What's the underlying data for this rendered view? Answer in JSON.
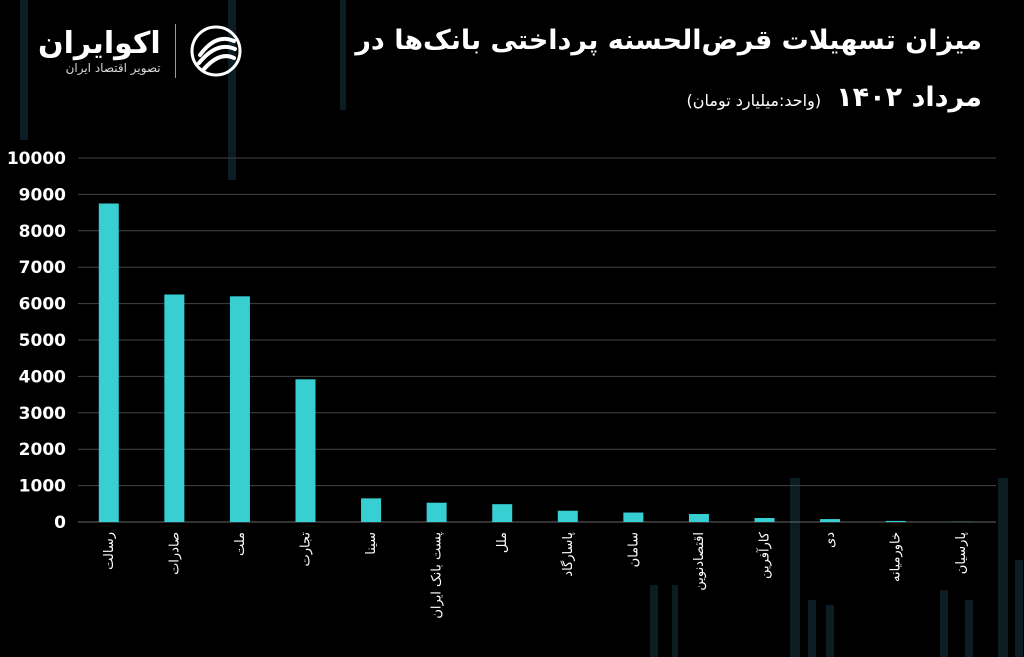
{
  "title_line1": "میزان تسهیلات قرض‌الحسنه پرداختی بانک‌ها در",
  "title_line2": "مرداد ۱۴۰۲",
  "unit": "(واحد:میلیارد تومان)",
  "logo": {
    "name": "اکوایران",
    "tagline": "تصویر اقتصاد ایران",
    "icon": "ecoiran-swoosh-icon"
  },
  "colors": {
    "bar": "#38cfd3",
    "background": "#000000",
    "grid": "#444444"
  },
  "chart_data": {
    "type": "bar",
    "categories": [
      "رسالت",
      "صادرات",
      "ملت",
      "تجارت",
      "سینا",
      "پست بانک ایران",
      "ملل",
      "پاسارگاد",
      "سامان",
      "اقتصادنوین",
      "کارآفرین",
      "دی",
      "خاورمیانه",
      "پارسیان"
    ],
    "values": [
      8750,
      6250,
      6200,
      3920,
      650,
      530,
      490,
      310,
      260,
      220,
      110,
      80,
      30,
      5
    ],
    "ylim": [
      0,
      10000
    ],
    "yticks": [
      "0",
      "1000",
      "2000",
      "3000",
      "4000",
      "5000",
      "6000",
      "7000",
      "8000",
      "9000",
      "10000"
    ],
    "grid": true
  }
}
